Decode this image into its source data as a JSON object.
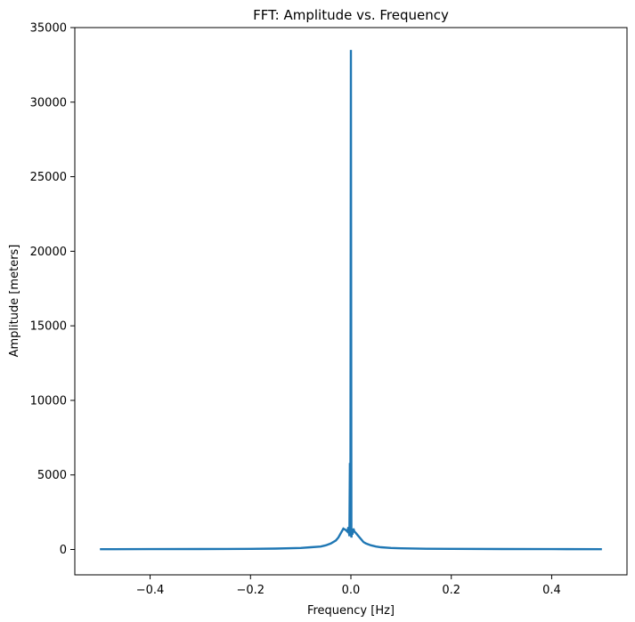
{
  "chart_data": {
    "type": "line",
    "title": "FFT: Amplitude vs. Frequency",
    "xlabel": "Frequency [Hz]",
    "ylabel": "Amplitude [meters]",
    "xlim": [
      -0.55,
      0.55
    ],
    "ylim": [
      -1700,
      35000
    ],
    "xticks": [
      -0.4,
      -0.2,
      0.0,
      0.2,
      0.4
    ],
    "xtick_labels": [
      "−0.4",
      "−0.2",
      "0.0",
      "0.2",
      "0.4"
    ],
    "yticks": [
      0,
      5000,
      10000,
      15000,
      20000,
      25000,
      30000,
      35000
    ],
    "ytick_labels": [
      "0",
      "5000",
      "10000",
      "15000",
      "20000",
      "25000",
      "30000",
      "35000"
    ],
    "grid": false,
    "legend": false,
    "color": "#1f77b4",
    "series": [
      {
        "x": [
          -0.5,
          -0.4,
          -0.3,
          -0.2,
          -0.15,
          -0.1,
          -0.08,
          -0.06,
          -0.05,
          -0.04,
          -0.03,
          -0.025,
          -0.02,
          -0.015,
          -0.01,
          -0.007,
          -0.005,
          -0.003,
          -0.002,
          -0.001,
          0.0,
          0.001,
          0.002,
          0.003,
          0.005,
          0.007,
          0.01,
          0.015,
          0.02,
          0.025,
          0.03,
          0.04,
          0.05,
          0.06,
          0.08,
          0.1,
          0.15,
          0.2,
          0.3,
          0.4,
          0.5
        ],
        "y": [
          20,
          25,
          30,
          40,
          60,
          100,
          150,
          200,
          280,
          400,
          600,
          800,
          1100,
          1400,
          1300,
          1200,
          1500,
          900,
          5800,
          1000,
          33500,
          800,
          1200,
          1000,
          1400,
          1200,
          1100,
          900,
          700,
          500,
          400,
          280,
          200,
          150,
          100,
          80,
          50,
          40,
          30,
          25,
          20
        ]
      }
    ]
  }
}
